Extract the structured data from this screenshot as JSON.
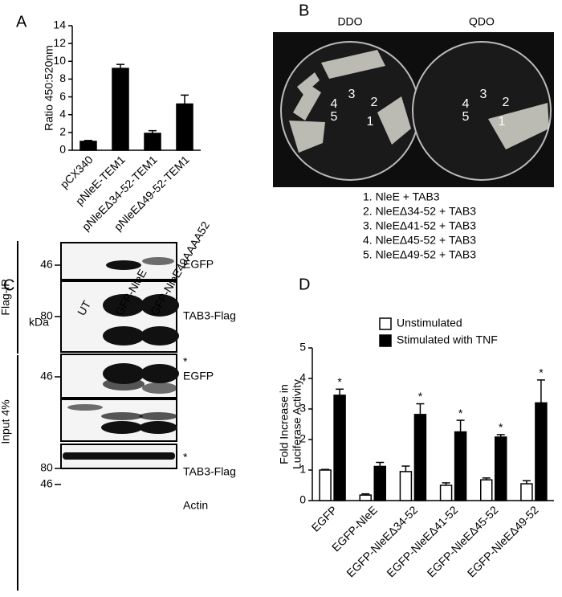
{
  "chart_data": [
    {
      "type": "bar",
      "panel_label": "A",
      "y_label": "Ratio 450:520nm",
      "categories": [
        "pCX340",
        "pNleE-TEM1",
        "pNleEΔ34-52-TEM1",
        "pNleEΔ49-52-TEM1"
      ],
      "values": [
        1.0,
        9.2,
        1.9,
        5.2
      ],
      "errors": [
        0.1,
        0.45,
        0.3,
        1.0
      ],
      "color": "#000000",
      "ylim": [
        0,
        14
      ],
      "yticks": [
        0,
        2,
        4,
        6,
        8,
        10,
        12,
        14
      ]
    },
    {
      "type": "bar",
      "panel_label": "D",
      "y_label": [
        "Fold Increase in",
        "Luciferase Activity"
      ],
      "categories": [
        "EGFP",
        "EGFP-NleE",
        "EGFP-NleEΔ34-52",
        "EGFP-NleEΔ41-52",
        "EGFP-NleEΔ45-52",
        "EGFP-NleEΔ49-52"
      ],
      "series": [
        {
          "name": "Unstimulated",
          "color": "#ffffff",
          "values": [
            1.0,
            0.18,
            0.95,
            0.5,
            0.68,
            0.55
          ],
          "errors": [
            0.02,
            0.04,
            0.18,
            0.08,
            0.06,
            0.1
          ]
        },
        {
          "name": "Stimulated with TNF",
          "color": "#000000",
          "values": [
            3.45,
            1.12,
            2.82,
            2.25,
            2.08,
            3.2
          ],
          "errors": [
            0.2,
            0.13,
            0.35,
            0.38,
            0.08,
            0.75
          ],
          "significance": [
            "*",
            null,
            "*",
            "*",
            "*",
            "*"
          ]
        }
      ],
      "ylim": [
        0,
        5
      ],
      "yticks": [
        0,
        1,
        2,
        3,
        4,
        5
      ]
    }
  ],
  "panel_b": {
    "panel_label": "B",
    "plates": [
      "DDO",
      "QDO"
    ],
    "spots": [
      "1",
      "2",
      "3",
      "4",
      "5"
    ],
    "legend": [
      "1. NleE + TAB3",
      "2. NleEΔ34-52 + TAB3",
      "3. NleEΔ41-52 + TAB3",
      "4. NleEΔ45-52 + TAB3",
      "5. NleEΔ49-52 + TAB3"
    ]
  },
  "panel_c": {
    "panel_label": "C",
    "unit": "kDa",
    "lanes": [
      "UT",
      "GFP-NleE",
      "GFP-NleE49AAAA52"
    ],
    "groups": [
      "Flag-IP",
      "Input 4%"
    ],
    "blots": [
      {
        "marker": 46,
        "label": "EGFP"
      },
      {
        "marker": 80,
        "label": "TAB3-Flag"
      },
      {
        "marker": 46,
        "label": "EGFP",
        "note": "*"
      },
      {
        "marker": 80,
        "label": "TAB3-Flag",
        "note": "*"
      },
      {
        "marker": 46,
        "label": "Actin"
      }
    ]
  }
}
